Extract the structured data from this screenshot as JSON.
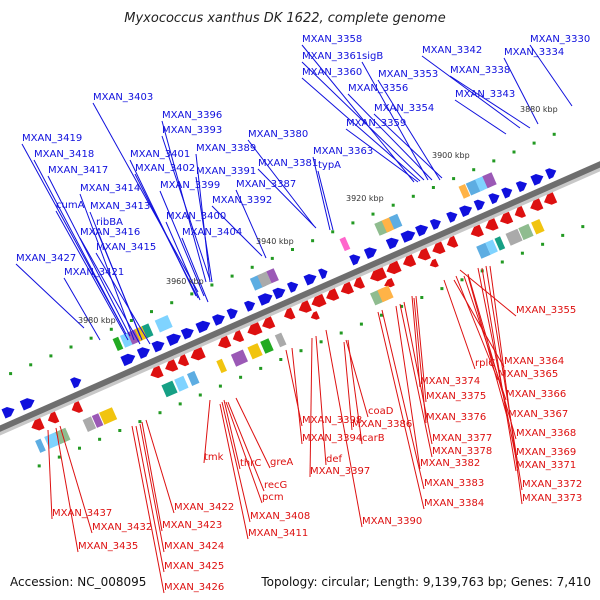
{
  "title": "Myxococcus xanthus DK 1622, complete genome",
  "accession": "Accession: NC_008095",
  "summary": "Topology: circular; Length: 9,139,763 bp; Genes: 7,410",
  "ticks": [
    "3880 kbp",
    "3900 kbp",
    "3920 kbp",
    "3940 kbp",
    "3960 kbp",
    "3980 kbp"
  ],
  "colors": {
    "forward": "#1010dd",
    "reverse": "#dd1010",
    "backbone": "#6e6e6e",
    "other": "#229922"
  },
  "forward_labels": [
    "MXAN_3358",
    "MXAN_3361",
    "sigB",
    "MXAN_3360",
    "MXAN_3353",
    "MXAN_3356",
    "MXAN_3354",
    "MXAN_3359",
    "MXAN_3342",
    "MXAN_3334",
    "MXAN_3330",
    "MXAN_3338",
    "MXAN_3343",
    "MXAN_3363",
    "typA",
    "MXAN_3380",
    "MXAN_3381",
    "MXAN_3387",
    "MXAN_3392",
    "MXAN_3403",
    "MXAN_3396",
    "MXAN_3393",
    "MXAN_3389",
    "MXAN_3391",
    "MXAN_3401",
    "MXAN_3402",
    "MXAN_3399",
    "MXAN_3400",
    "MXAN_3404",
    "MXAN_3419",
    "MXAN_3418",
    "MXAN_3417",
    "MXAN_3414",
    "cumA",
    "MXAN_3413",
    "ribBA",
    "MXAN_3416",
    "MXAN_3415",
    "MXAN_3427",
    "MXAN_3421"
  ],
  "reverse_labels": [
    "MXAN_3355",
    "MXAN_3364",
    "rplC",
    "MXAN_3365",
    "MXAN_3374",
    "MXAN_3366",
    "MXAN_3375",
    "MXAN_3367",
    "MXAN_3376",
    "MXAN_3368",
    "MXAN_3377",
    "MXAN_3378",
    "MXAN_3369",
    "MXAN_3371",
    "MXAN_3382",
    "MXAN_3372",
    "MXAN_3383",
    "MXAN_3373",
    "MXAN_3384",
    "MXAN_3390",
    "coaD",
    "MXAN_3386",
    "carB",
    "MXAN_3398",
    "MXAN_3394",
    "def",
    "MXAN_3397",
    "tmk",
    "thrC",
    "greA",
    "recG",
    "pcm",
    "MXAN_3408",
    "MXAN_3411",
    "MXAN_3422",
    "MXAN_3423",
    "MXAN_3424",
    "MXAN_3425",
    "MXAN_3426",
    "MXAN_3437",
    "MXAN_3432",
    "MXAN_3435"
  ]
}
